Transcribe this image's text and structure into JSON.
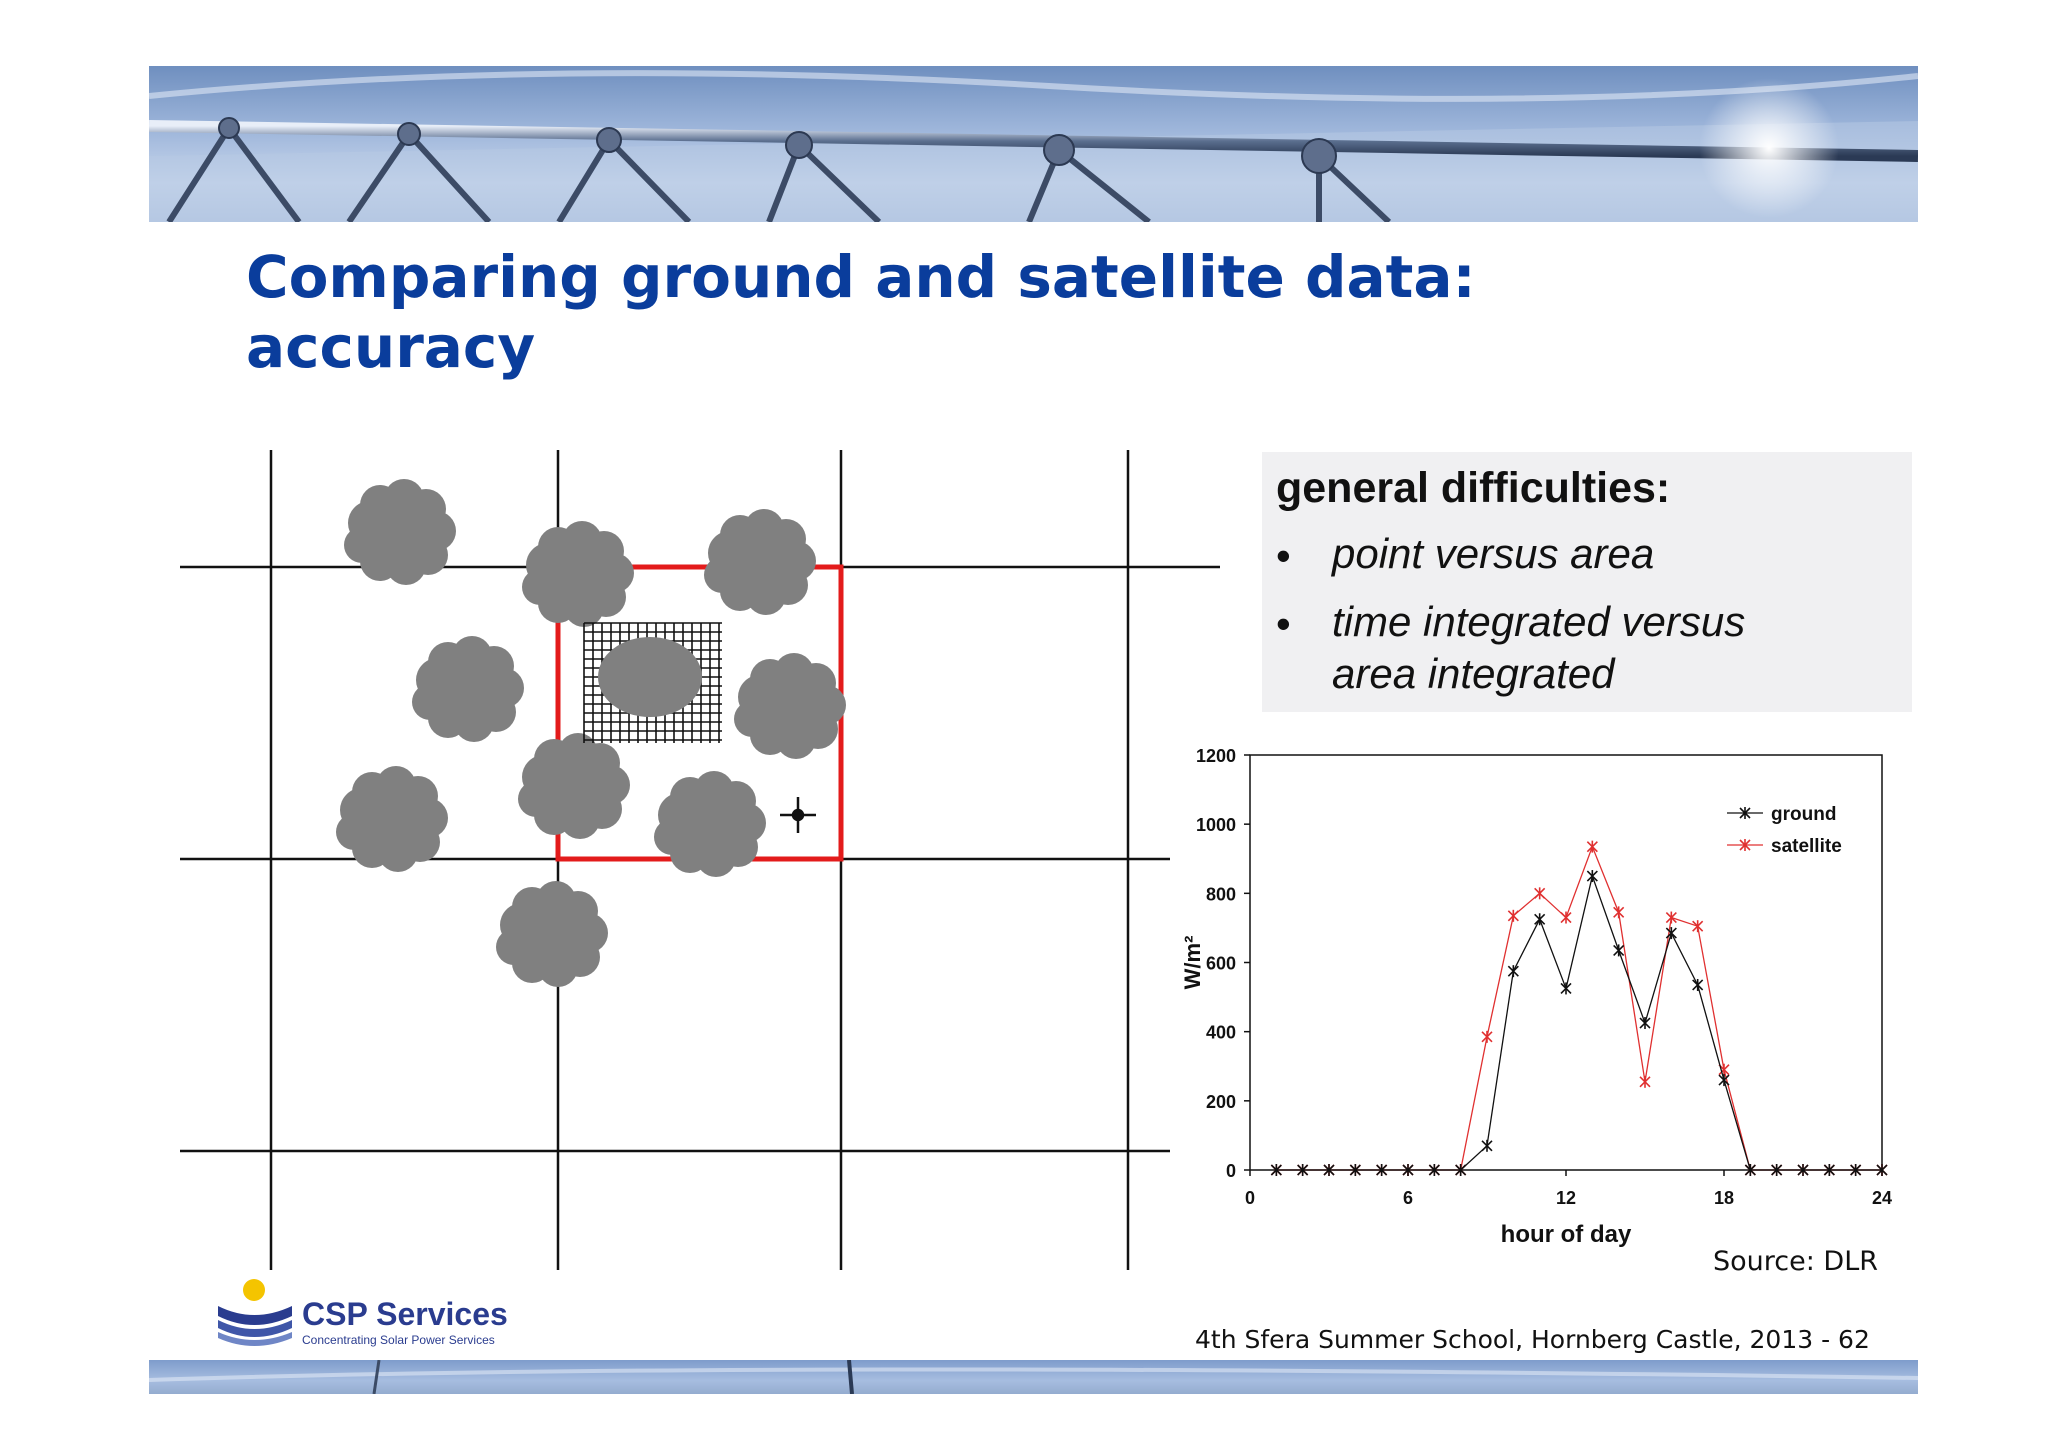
{
  "slide": {
    "title_line1": "Comparing ground and satellite data:",
    "title_line2": "accuracy",
    "source": "Source: DLR",
    "footer": "4th Sfera Summer School, Hornberg Castle, 2013   - 62"
  },
  "info_box": {
    "heading": "general difficulties:",
    "bullet_symbol": "•",
    "bullets": [
      {
        "line1": "point versus area",
        "line2": ""
      },
      {
        "line1": "time integrated versus",
        "line2": "area integrated"
      }
    ]
  },
  "logo": {
    "name": "CSP Services",
    "tagline": "Concentrating Solar Power Services",
    "colors": {
      "sun": "#f4c400",
      "brand": "#2a3c8f"
    }
  },
  "colors": {
    "title": "#0a3d9c",
    "highlight_cell": "#e31b1b",
    "cloud": "#808080",
    "ground": "#111111",
    "satellite": "#e03030"
  },
  "chart_data": {
    "type": "line",
    "title": "",
    "xlabel": "hour of day",
    "ylabel": "W/m²",
    "xlim": [
      0,
      24
    ],
    "ylim": [
      0,
      1200
    ],
    "x_ticks": [
      0,
      6,
      12,
      18,
      24
    ],
    "y_ticks": [
      0,
      200,
      400,
      600,
      800,
      1000,
      1200
    ],
    "legend_position": "top-right",
    "x": [
      1,
      2,
      3,
      4,
      5,
      6,
      7,
      8,
      9,
      10,
      11,
      12,
      13,
      14,
      15,
      16,
      17,
      18,
      19,
      20,
      21,
      22,
      23,
      24
    ],
    "series": [
      {
        "name": "ground",
        "color": "#111111",
        "values": [
          0,
          0,
          0,
          0,
          0,
          0,
          0,
          0,
          70,
          575,
          725,
          525,
          850,
          635,
          425,
          685,
          535,
          260,
          0,
          0,
          0,
          0,
          0,
          0
        ]
      },
      {
        "name": "satellite",
        "color": "#e03030",
        "values": [
          0,
          0,
          0,
          0,
          0,
          0,
          0,
          0,
          385,
          735,
          800,
          730,
          935,
          745,
          255,
          730,
          705,
          290,
          0,
          0,
          0,
          0,
          0,
          0
        ]
      }
    ]
  }
}
